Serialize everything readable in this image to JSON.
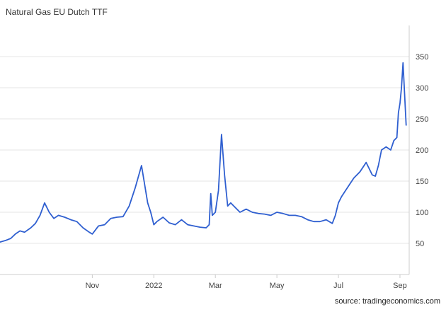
{
  "title": "Natural Gas EU Dutch TTF",
  "source": "source: tradingeconomics.com",
  "colors": {
    "line": "#2f5fd0",
    "grid": "#e6e6e6",
    "axis_text": "#444444"
  },
  "chart_data": {
    "type": "line",
    "title": "Natural Gas EU Dutch TTF",
    "xlabel": "",
    "ylabel": "",
    "ylim": [
      0,
      400
    ],
    "grid": true,
    "y_ticks": [
      50,
      100,
      150,
      200,
      250,
      300,
      350
    ],
    "x_ticks": [
      {
        "label": "Nov",
        "x": 3
      },
      {
        "label": "2022",
        "x": 5
      },
      {
        "label": "Mar",
        "x": 7
      },
      {
        "label": "May",
        "x": 9
      },
      {
        "label": "Jul",
        "x": 11
      },
      {
        "label": "Sep",
        "x": 13
      }
    ],
    "x_unit": "months (0 = start of Sep 2021)",
    "series": [
      {
        "name": "",
        "x": [
          0,
          0.2,
          0.35,
          0.5,
          0.65,
          0.8,
          1.0,
          1.15,
          1.3,
          1.45,
          1.6,
          1.75,
          1.9,
          2.1,
          2.3,
          2.5,
          2.7,
          2.9,
          3.0,
          3.2,
          3.4,
          3.6,
          3.8,
          4.0,
          4.2,
          4.4,
          4.6,
          4.8,
          4.9,
          5.0,
          5.1,
          5.3,
          5.5,
          5.7,
          5.9,
          6.1,
          6.3,
          6.5,
          6.7,
          6.8,
          6.85,
          6.9,
          7.0,
          7.1,
          7.2,
          7.3,
          7.4,
          7.5,
          7.6,
          7.8,
          8.0,
          8.2,
          8.4,
          8.6,
          8.8,
          9.0,
          9.2,
          9.4,
          9.6,
          9.8,
          10.0,
          10.2,
          10.4,
          10.6,
          10.8,
          10.9,
          11.0,
          11.1,
          11.3,
          11.5,
          11.7,
          11.9,
          12.0,
          12.1,
          12.2,
          12.3,
          12.4,
          12.55,
          12.7,
          12.8,
          12.9,
          12.95,
          13.0,
          13.05,
          13.1,
          13.2
        ],
        "values": [
          52,
          55,
          58,
          65,
          70,
          68,
          75,
          82,
          95,
          115,
          100,
          90,
          95,
          92,
          88,
          85,
          75,
          68,
          65,
          78,
          80,
          90,
          92,
          93,
          110,
          140,
          175,
          115,
          100,
          80,
          85,
          92,
          83,
          80,
          88,
          80,
          78,
          76,
          75,
          80,
          130,
          95,
          100,
          135,
          225,
          160,
          110,
          115,
          110,
          100,
          105,
          100,
          98,
          97,
          95,
          100,
          98,
          95,
          95,
          93,
          88,
          85,
          85,
          88,
          82,
          95,
          115,
          125,
          140,
          155,
          165,
          180,
          170,
          160,
          158,
          175,
          200,
          205,
          200,
          215,
          220,
          260,
          275,
          300,
          340,
          240
        ]
      }
    ]
  }
}
